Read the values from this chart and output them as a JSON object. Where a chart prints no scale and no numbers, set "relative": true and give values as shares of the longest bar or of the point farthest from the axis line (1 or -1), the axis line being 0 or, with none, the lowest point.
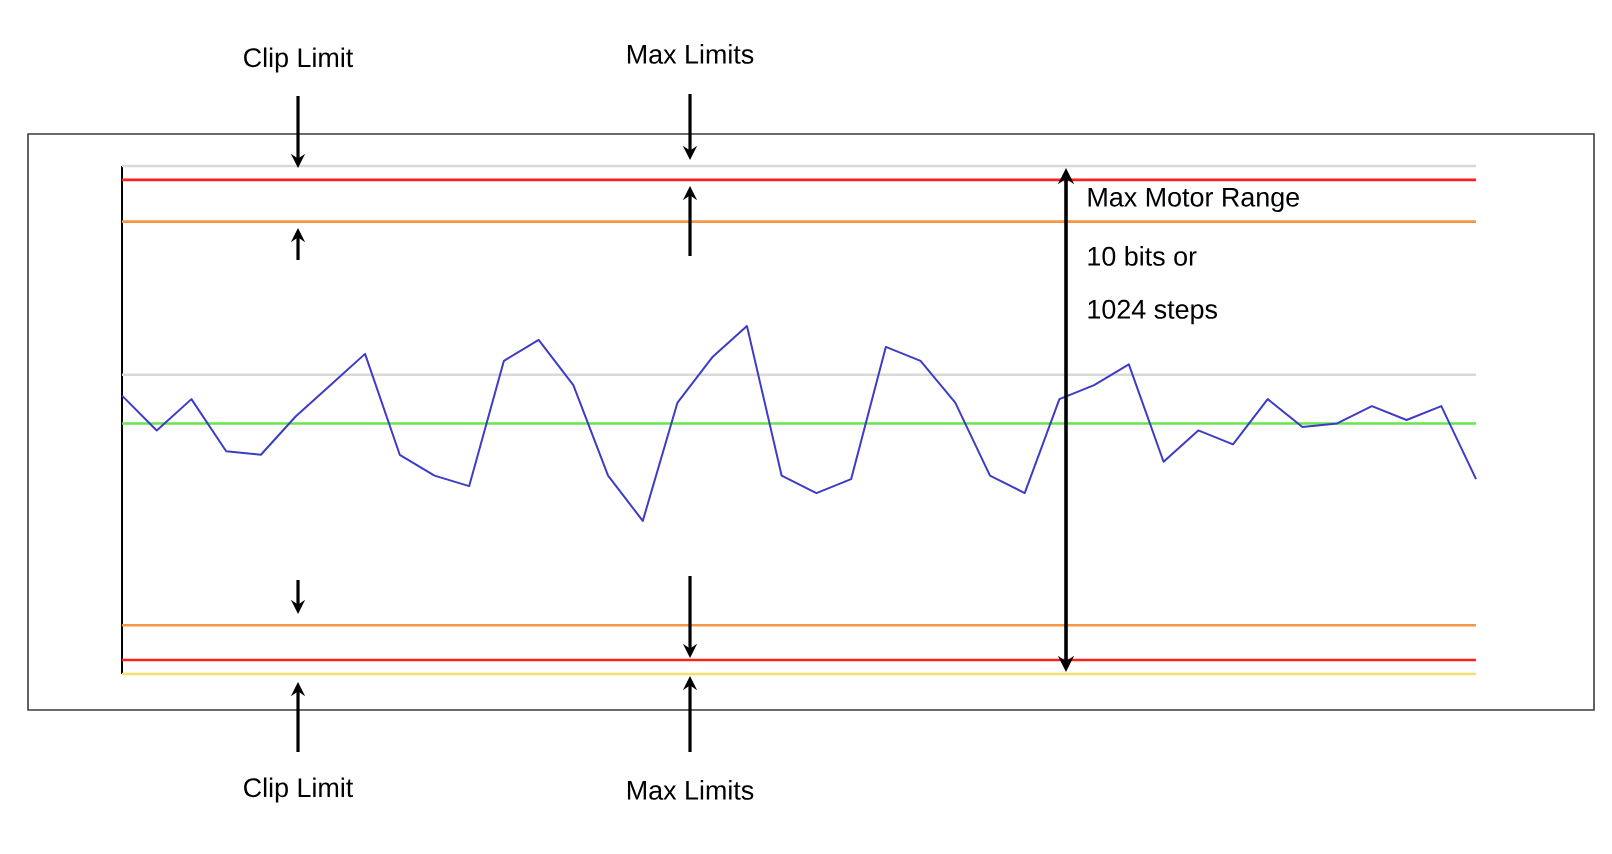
{
  "chart_data": {
    "type": "line",
    "relative": true,
    "categories": [
      null,
      null,
      null,
      null,
      null,
      null,
      null,
      null,
      null,
      null,
      null,
      null,
      null,
      null,
      null,
      null,
      null,
      null,
      null,
      null,
      null,
      null,
      null,
      null,
      null,
      null,
      null,
      null,
      null,
      null,
      null,
      null,
      null,
      null,
      null,
      null,
      null,
      null,
      null,
      null
    ],
    "series": [
      {
        "color": "#3c3cc8",
        "values": [
          0.8,
          0.7,
          0.79,
          0.64,
          0.63,
          0.74,
          0.83,
          0.92,
          0.63,
          0.57,
          0.54,
          0.9,
          0.96,
          0.83,
          0.57,
          0.44,
          0.78,
          0.91,
          1,
          0.57,
          0.52,
          0.56,
          0.94,
          0.9,
          0.78,
          0.57,
          0.52,
          0.79,
          0.83,
          0.89,
          0.61,
          0.7,
          0.66,
          0.79,
          0.71,
          0.72,
          0.77,
          0.73,
          0.77,
          0.56
        ]
      }
    ],
    "ref_lines": [
      {
        "axis": "y",
        "value": 1.46,
        "color": "#d9d9d9"
      },
      {
        "axis": "y",
        "value": 1.42,
        "color": "#ff2020"
      },
      {
        "axis": "y",
        "value": 1.3,
        "color": "#f79646"
      },
      {
        "axis": "y",
        "value": 0.86,
        "color": "#d9d9d9"
      },
      {
        "axis": "y",
        "value": 0.72,
        "color": "#66e64d"
      },
      {
        "axis": "y",
        "value": 0.14,
        "color": "#f79646"
      },
      {
        "axis": "y",
        "value": 0.04,
        "color": "#ff2020"
      },
      {
        "axis": "y",
        "value": 0,
        "color": "#f0e070"
      }
    ],
    "annotations": [
      "Clip Limit",
      "Clip Limit",
      "Max Limits",
      "Max Limits",
      "Max Motor Range",
      "10 bits or",
      "1024 steps"
    ]
  }
}
